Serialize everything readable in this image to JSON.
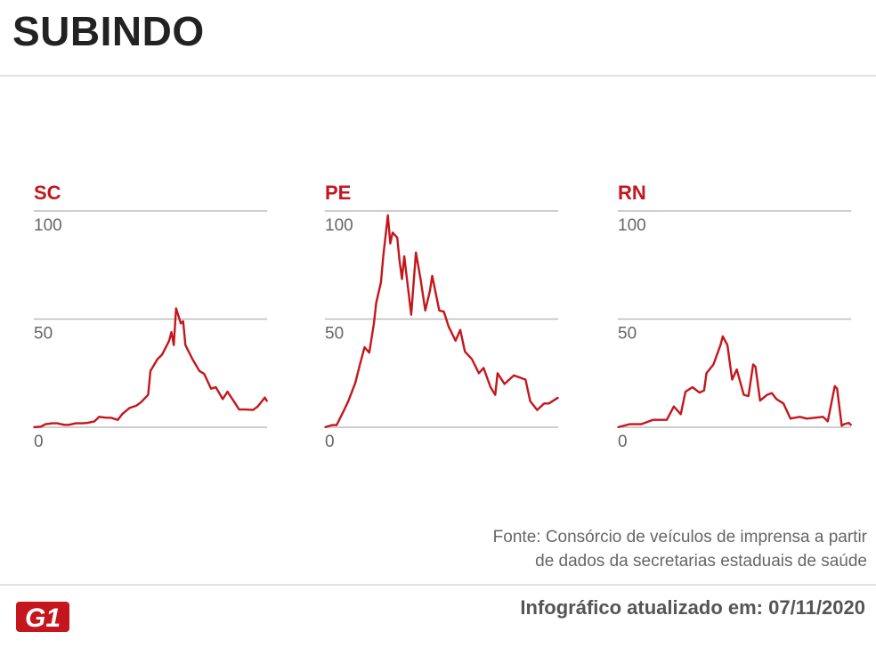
{
  "title": "SUBINDO",
  "colors": {
    "line": "#c4161c",
    "label": "#c4161c",
    "grid": "#bdbdbd",
    "tick": "#666666"
  },
  "chart_data": [
    {
      "type": "line",
      "title": "SC",
      "ylim": [
        0,
        100
      ],
      "yticks": [
        "0",
        "50",
        "100"
      ],
      "grid": true,
      "x": [
        0,
        3,
        5,
        8,
        10,
        13,
        15,
        18,
        21,
        23,
        26,
        28,
        31,
        33,
        36,
        38,
        41,
        44,
        46,
        49,
        50,
        53,
        55,
        58,
        59,
        60,
        61,
        63,
        64,
        65,
        68,
        71,
        73,
        76,
        78,
        81,
        83,
        86,
        88,
        91,
        94,
        96,
        99,
        100
      ],
      "values": [
        0,
        0.3,
        1.4,
        1.8,
        1.8,
        1.1,
        1.1,
        1.8,
        1.8,
        2,
        2.7,
        4.8,
        4.4,
        4.4,
        3.4,
        6.2,
        8.9,
        10,
        11.6,
        15,
        26,
        31.5,
        33.6,
        40,
        44,
        38,
        55,
        48,
        49,
        38,
        31.5,
        26,
        24.7,
        17.8,
        18.5,
        13,
        16.4,
        11.6,
        8.2,
        8.2,
        8,
        9.6,
        13.7,
        12
      ]
    },
    {
      "type": "line",
      "title": "PE",
      "ylim": [
        0,
        100
      ],
      "yticks": [
        "0",
        "50",
        "100"
      ],
      "grid": true,
      "x": [
        0,
        3,
        5,
        8,
        10,
        13,
        15,
        17,
        19,
        21,
        22,
        24,
        25,
        27,
        28,
        29,
        31,
        32,
        33,
        34,
        37,
        39,
        41,
        43,
        45,
        46,
        49,
        51,
        53,
        56,
        58,
        60,
        63,
        66,
        68,
        71,
        73,
        74,
        77,
        81,
        86,
        88,
        91,
        94,
        96,
        100
      ],
      "values": [
        0,
        1,
        1,
        7.5,
        12,
        20.5,
        29,
        37,
        34.5,
        48,
        57.5,
        67,
        79,
        98,
        85,
        90,
        87.7,
        77,
        68.5,
        79,
        52,
        80.8,
        68.5,
        54,
        63,
        70,
        54,
        53.4,
        46.6,
        40,
        45,
        35,
        31.5,
        25,
        27.4,
        18.5,
        15,
        25,
        20,
        24,
        22,
        12,
        8,
        11,
        11,
        13.7
      ]
    },
    {
      "type": "line",
      "title": "RN",
      "ylim": [
        0,
        100
      ],
      "yticks": [
        "0",
        "50",
        "100"
      ],
      "grid": true,
      "x": [
        0,
        5,
        10,
        15,
        21,
        24,
        27,
        29,
        32,
        35,
        37,
        38,
        41,
        44,
        45,
        47,
        49,
        51,
        54,
        56,
        58,
        59,
        61,
        64,
        66,
        68,
        71,
        74,
        78,
        81,
        88,
        90,
        93,
        94,
        96,
        97,
        99,
        100
      ],
      "values": [
        0,
        1.4,
        1.4,
        3.4,
        3.4,
        9.6,
        6,
        16.4,
        18.5,
        16,
        17,
        25,
        29,
        38,
        42,
        38,
        22,
        26.7,
        15,
        14.4,
        29,
        28,
        12.3,
        15,
        15.8,
        13,
        11,
        4,
        4.8,
        4,
        4.8,
        2.7,
        19,
        17.8,
        0.7,
        1.4,
        2,
        1
      ]
    }
  ],
  "source": {
    "line1": "Fonte: Consórcio de veículos de imprensa a partir",
    "line2": "de dados da secretarias estaduais de saúde"
  },
  "updated": "Infográfico atualizado em: 07/11/2020",
  "logo_text": "G1"
}
